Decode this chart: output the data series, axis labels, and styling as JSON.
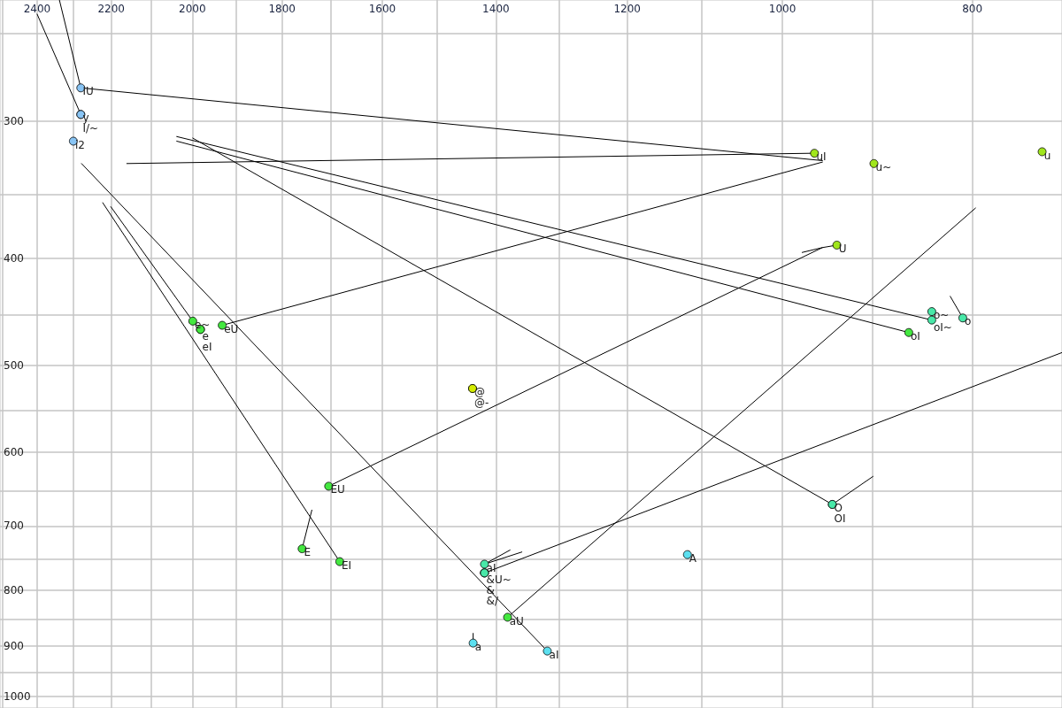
{
  "chart_data": {
    "type": "scatter",
    "log": "xy",
    "grid": true,
    "xlim": [
      2507,
      720
    ],
    "ylim": [
      1024,
      233
    ],
    "xticks": [
      {
        "value": 2500,
        "label": null
      },
      2400,
      {
        "value": 2300,
        "label": null
      },
      2200,
      {
        "value": 2100,
        "label": null
      },
      2000,
      {
        "value": 1900,
        "label": null
      },
      1800,
      {
        "value": 1700,
        "label": null
      },
      1600,
      {
        "value": 1500,
        "label": null
      },
      1400,
      {
        "value": 1300,
        "label": null
      },
      1200,
      {
        "value": 1100,
        "label": null
      },
      1000,
      {
        "value": 900,
        "label": null
      },
      800
    ],
    "yticks": [
      {
        "value": 250,
        "label": null
      },
      300,
      {
        "value": 350,
        "label": null
      },
      400,
      {
        "value": 450,
        "label": null
      },
      500,
      {
        "value": 550,
        "label": null
      },
      600,
      {
        "value": 650,
        "label": null
      },
      700,
      {
        "value": 750,
        "label": null
      },
      800,
      {
        "value": 850,
        "label": null
      },
      900,
      {
        "value": 950,
        "label": null
      },
      1000
    ],
    "series": [
      {
        "type": "line",
        "color": "#000000",
        "x": [
          2400,
          2280
        ],
        "values": [
          240,
          296
        ]
      },
      {
        "type": "line",
        "color": "#000000",
        "x": [
          2338,
          2280
        ],
        "values": [
          233,
          280
        ]
      },
      {
        "type": "line",
        "color": "#000000",
        "x": [
          2280,
          954
        ],
        "values": [
          280,
          326
        ]
      },
      {
        "type": "line",
        "color": "#000000",
        "x": [
          2160,
          963
        ],
        "values": [
          328,
          321
        ]
      },
      {
        "type": "line",
        "color": "#000000",
        "x": [
          1931,
          954
        ],
        "values": [
          460,
          327
        ]
      },
      {
        "type": "line",
        "color": "#000000",
        "x": [
          2037,
          839
        ],
        "values": [
          310,
          455
        ]
      },
      {
        "type": "line",
        "color": "#000000",
        "x": [
          2037,
          862
        ],
        "values": [
          313,
          467
        ]
      },
      {
        "type": "line",
        "color": "#000000",
        "x": [
          1999,
          943
        ],
        "values": [
          311,
          669
        ]
      },
      {
        "type": "line",
        "color": "#000000",
        "x": [
          943,
          899
        ],
        "values": [
          669,
          631
        ]
      },
      {
        "type": "line",
        "color": "#000000",
        "x": [
          2278,
          1318
        ],
        "values": [
          328,
          909
        ]
      },
      {
        "type": "line",
        "color": "#000000",
        "x": [
          2222,
          1682
        ],
        "values": [
          356,
          754
        ]
      },
      {
        "type": "line",
        "color": "#000000",
        "x": [
          2201,
          1999
        ],
        "values": [
          359,
          456
        ]
      },
      {
        "type": "line",
        "color": "#000000",
        "x": [
          1758,
          1738
        ],
        "values": [
          734,
          677
        ]
      },
      {
        "type": "line",
        "color": "#000000",
        "x": [
          1704,
          954,
          938
        ],
        "values": [
          644,
          391,
          389
        ]
      },
      {
        "type": "line",
        "color": "#000000",
        "x": [
          977,
          954
        ],
        "values": [
          395,
          391
        ]
      },
      {
        "type": "line",
        "color": "#000000",
        "x": [
          1381,
          797
        ],
        "values": [
          847,
          360
        ]
      },
      {
        "type": "line",
        "color": "#000000",
        "x": [
          1419,
          720
        ],
        "values": [
          772,
          487
        ]
      },
      {
        "type": "line",
        "color": "#000000",
        "x": [
          1419,
          1377
        ],
        "values": [
          758,
          736
        ]
      },
      {
        "type": "line",
        "color": "#000000",
        "x": [
          1419,
          1358
        ],
        "values": [
          758,
          739
        ]
      },
      {
        "type": "line",
        "color": "#000000",
        "x": [
          809,
          821
        ],
        "values": [
          453,
          433
        ]
      },
      {
        "type": "line",
        "color": "#000000",
        "x": [
          1438,
          1438
        ],
        "values": [
          894,
          876
        ]
      },
      {
        "marker": "circle",
        "color": "#88c4f4",
        "x": [
          2280,
          2280,
          2280,
          2300
        ],
        "values": [
          280,
          296,
          296,
          313
        ],
        "value_labels": [
          "IU",
          "y",
          "I/~",
          "i2"
        ]
      },
      {
        "marker": "circle",
        "color": "#a0e61c",
        "x": [
          963,
          898,
          737,
          938
        ],
        "values": [
          321,
          328,
          320,
          389
        ],
        "value_labels": [
          "uI",
          "u~",
          "u",
          "U"
        ]
      },
      {
        "marker": "circle",
        "color": "#44e840",
        "x": [
          862,
          1999,
          1981,
          1981,
          1931,
          1704,
          1758,
          1682,
          1381
        ],
        "values": [
          467,
          456,
          464,
          464,
          460,
          644,
          734,
          754,
          847
        ],
        "value_labels": [
          "oI",
          "e~",
          "e",
          "eI",
          "eU",
          "EU",
          "E",
          "EI",
          "aU"
        ]
      },
      {
        "marker": "circle",
        "color": "#48e8a8",
        "x": [
          839,
          839,
          809,
          943,
          943,
          1419,
          1419,
          1419,
          1419
        ],
        "values": [
          447,
          455,
          453,
          669,
          669,
          758,
          772,
          772,
          772
        ],
        "value_labels": [
          "o~",
          "oI~",
          "o",
          "O",
          "OI",
          "aI",
          "&U~",
          "&",
          "&/"
        ]
      },
      {
        "marker": "circle",
        "color": "#5ce0f0",
        "x": [
          1118,
          1438,
          1318
        ],
        "values": [
          743,
          894,
          909
        ],
        "value_labels": [
          "A",
          "a",
          "aI"
        ]
      },
      {
        "marker": "circle",
        "color": "#d4ec00",
        "x": [
          1439,
          1439
        ],
        "values": [
          525,
          525
        ],
        "value_labels": [
          "@",
          "@-"
        ]
      }
    ]
  }
}
